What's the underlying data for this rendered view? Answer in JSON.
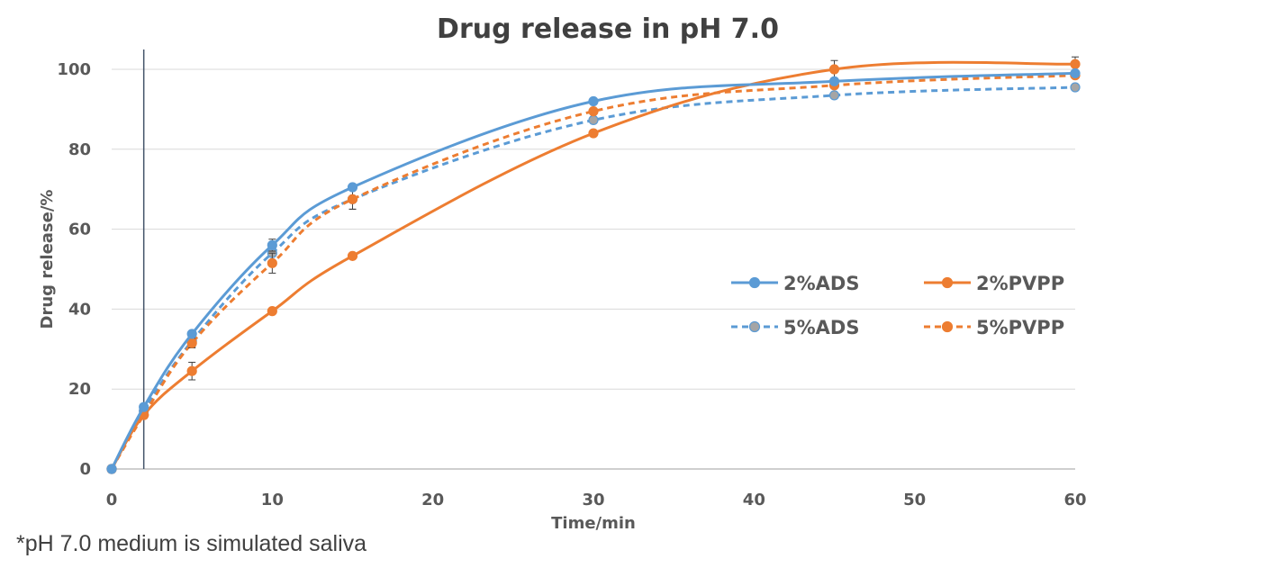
{
  "chart_data": {
    "type": "line",
    "title": "Drug release in pH 7.0",
    "xlabel": "Time/min",
    "ylabel": "Drug release/%",
    "xlim": [
      0,
      60
    ],
    "ylim": [
      0,
      100
    ],
    "x_ticks": [
      0,
      10,
      20,
      30,
      40,
      50,
      60
    ],
    "y_ticks": [
      0,
      20,
      40,
      60,
      80,
      100
    ],
    "grid": "horizontal",
    "legend_position": "right",
    "marker_line_x": 2,
    "x": [
      0,
      2,
      5,
      10,
      15,
      30,
      45,
      60
    ],
    "series": [
      {
        "name": "2%ADS",
        "values": [
          0,
          15.5,
          33.8,
          56,
          70.5,
          92,
          97,
          99
        ],
        "color": "#5B9BD5",
        "style": "solid",
        "error": [
          0,
          0.8,
          0.6,
          1.5,
          0.6,
          0.5,
          0.5,
          0.5
        ]
      },
      {
        "name": "2%PVPP",
        "values": [
          0,
          13.5,
          24.5,
          39.5,
          53.3,
          84,
          100,
          101.3
        ],
        "color": "#ED7D31",
        "style": "solid",
        "error": [
          0,
          0.8,
          2.2,
          0.5,
          0.5,
          0.5,
          2.2,
          1.8
        ]
      },
      {
        "name": "5%ADS",
        "values": [
          0,
          14.5,
          32,
          54,
          67.5,
          87.3,
          93.5,
          95.5
        ],
        "color": "#5B9BD5",
        "style": "dashed",
        "marker_color": "#A5A5A5",
        "error": [
          0,
          0.8,
          1.5,
          2.5,
          2.5,
          0.8,
          0.5,
          0.5
        ]
      },
      {
        "name": "5%PVPP",
        "values": [
          0,
          13.5,
          31.5,
          51.5,
          67.5,
          89.5,
          96,
          98.5
        ],
        "color": "#ED7D31",
        "style": "dashed",
        "error": [
          0,
          0.8,
          1.2,
          2.5,
          2.5,
          0.5,
          0.5,
          0.5
        ]
      }
    ]
  },
  "footnote": "*pH 7.0 medium is simulated saliva"
}
